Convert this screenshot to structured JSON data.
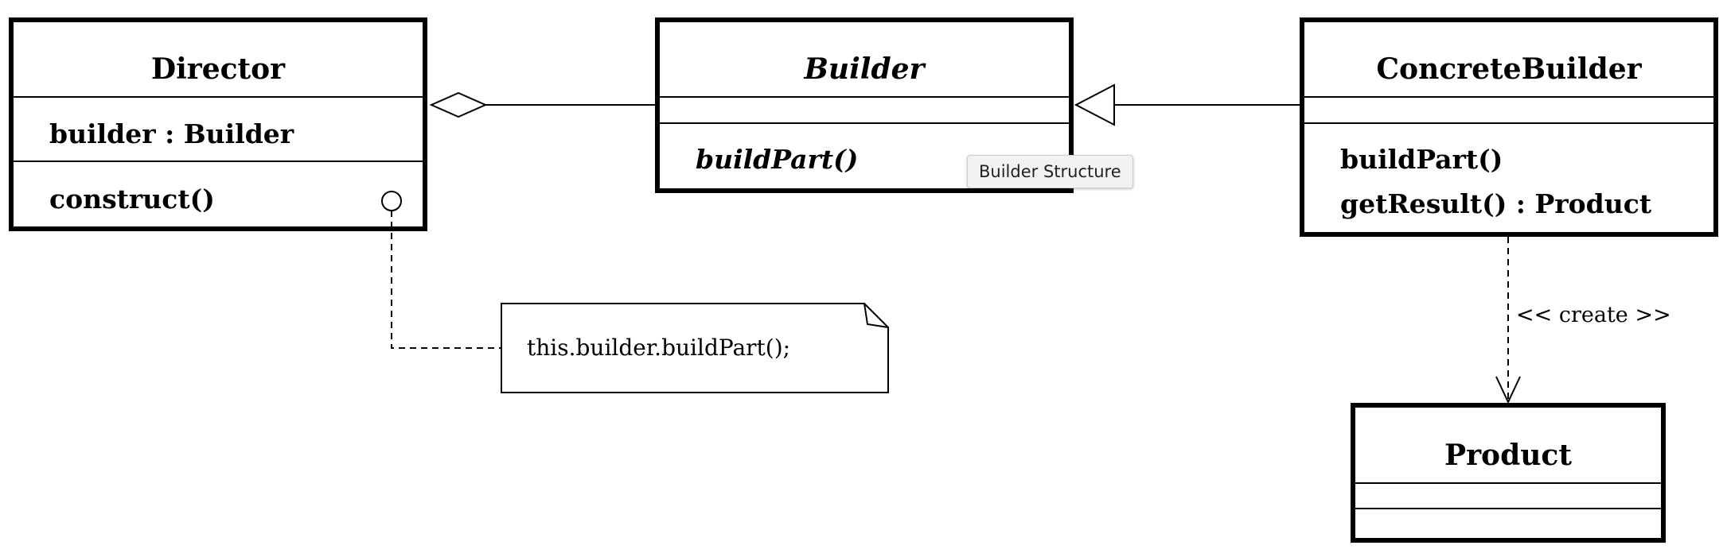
{
  "diagram": {
    "classes": {
      "director": {
        "name": "Director",
        "attributes": [
          "builder : Builder"
        ],
        "operations": [
          "construct()"
        ]
      },
      "builder": {
        "name": "Builder",
        "attributes": [],
        "operations": [
          "buildPart()"
        ]
      },
      "concrete_builder": {
        "name": "ConcreteBuilder",
        "attributes": [],
        "operations": [
          "buildPart()",
          "getResult() : Product"
        ]
      },
      "product": {
        "name": "Product",
        "attributes": [],
        "operations": []
      }
    },
    "relations": {
      "aggregation": {
        "from": "Director",
        "to": "Builder",
        "kind": "aggregation"
      },
      "generalization": {
        "from": "ConcreteBuilder",
        "to": "Builder",
        "kind": "generalization"
      },
      "dependency": {
        "from": "ConcreteBuilder",
        "to": "Product",
        "kind": "dependency",
        "label": "<< create >>"
      }
    },
    "note": {
      "text": "this.builder.buildPart();",
      "attached_to": "construct()"
    }
  },
  "tooltip": {
    "text": "Builder Structure"
  }
}
